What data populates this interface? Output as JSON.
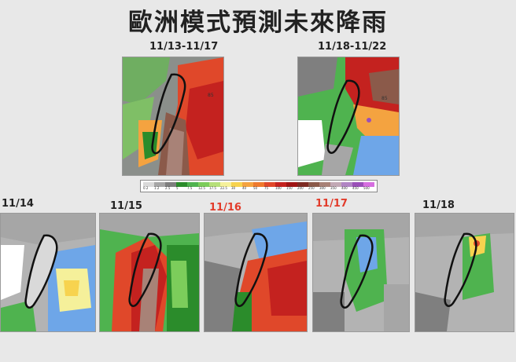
{
  "title": "歐洲模式預測未來降雨",
  "top_panels": [
    {
      "label": "11/13-11/17",
      "value": "85"
    },
    {
      "label": "11/18-11/22",
      "value": "85"
    }
  ],
  "bottom_panels": [
    {
      "label": "11/14",
      "highlight": false
    },
    {
      "label": "11/15",
      "highlight": false
    },
    {
      "label": "11/16",
      "highlight": true
    },
    {
      "label": "11/17",
      "highlight": true
    },
    {
      "label": "11/18",
      "highlight": false
    }
  ],
  "colorbar": {
    "ticks": [
      "0.2",
      "1.2",
      "2.5",
      "5",
      "7.5",
      "12.5",
      "17.5",
      "22.5",
      "30",
      "40",
      "50",
      "75",
      "100",
      "150",
      "200",
      "250",
      "300",
      "350",
      "400",
      "450",
      "500"
    ],
    "colors": [
      "#d9d9d9",
      "#a6a6a6",
      "#7f7f7f",
      "#2b8c2b",
      "#4fb34f",
      "#7ccd5b",
      "#b6e07a",
      "#f5f09a",
      "#f7d34f",
      "#f4a340",
      "#ee7a2e",
      "#e0482a",
      "#c4221f",
      "#a01414",
      "#7d2a22",
      "#8b5a4a",
      "#a88277",
      "#c2a9b5",
      "#b185c3",
      "#9a4fb8",
      "#d66ee0"
    ]
  },
  "palette": {
    "accent_red": "#e23b2a",
    "text": "#222222",
    "background": "#e8e8e8"
  }
}
